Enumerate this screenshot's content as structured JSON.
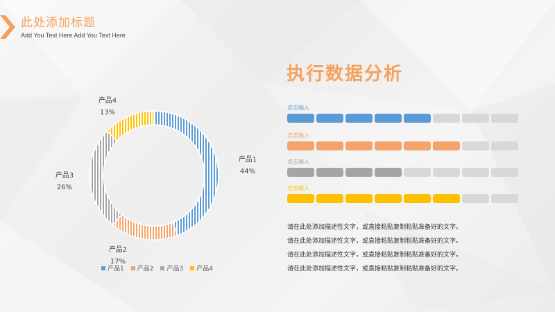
{
  "header": {
    "title": "此处添加标题",
    "subtitle": "Add You Text Here Add You Text Here"
  },
  "colors": {
    "accent": "#f5a15c",
    "series": [
      "#5b9bd5",
      "#f4a46a",
      "#a5a5a5",
      "#ffc000"
    ],
    "empty_segment": "#d8d8d8"
  },
  "chart_data": {
    "type": "pie",
    "variant": "donut",
    "categories": [
      "产品1",
      "产品2",
      "产品3",
      "产品4"
    ],
    "values": [
      44,
      17,
      26,
      13
    ],
    "percent_labels": [
      "44%",
      "17%",
      "26%",
      "13%"
    ],
    "legend": [
      "产品1",
      "产品2",
      "产品3",
      "产品4"
    ],
    "legend_position": "bottom"
  },
  "panel": {
    "title": "执行数据分析",
    "bars": [
      {
        "label": "点击输入",
        "filled": 5,
        "total": 8,
        "color": "#5b9bd5"
      },
      {
        "label": "点击输入",
        "filled": 6,
        "total": 8,
        "color": "#f4a46a"
      },
      {
        "label": "点击输入",
        "filled": 4,
        "total": 8,
        "color": "#a5a5a5"
      },
      {
        "label": "点击输入",
        "filled": 6,
        "total": 8,
        "color": "#ffc000"
      }
    ],
    "description": [
      "请在此处添加描述性文字，或直接粘贴复制粘贴准备好的文字。",
      "请在此处添加描述性文字，或直接粘贴复制粘贴准备好的文字。",
      "请在此处添加描述性文字，或直接粘贴复制粘贴准备好的文字。",
      "请在此处添加描述性文字，或直接粘贴复制粘贴准备好的文字。"
    ]
  }
}
